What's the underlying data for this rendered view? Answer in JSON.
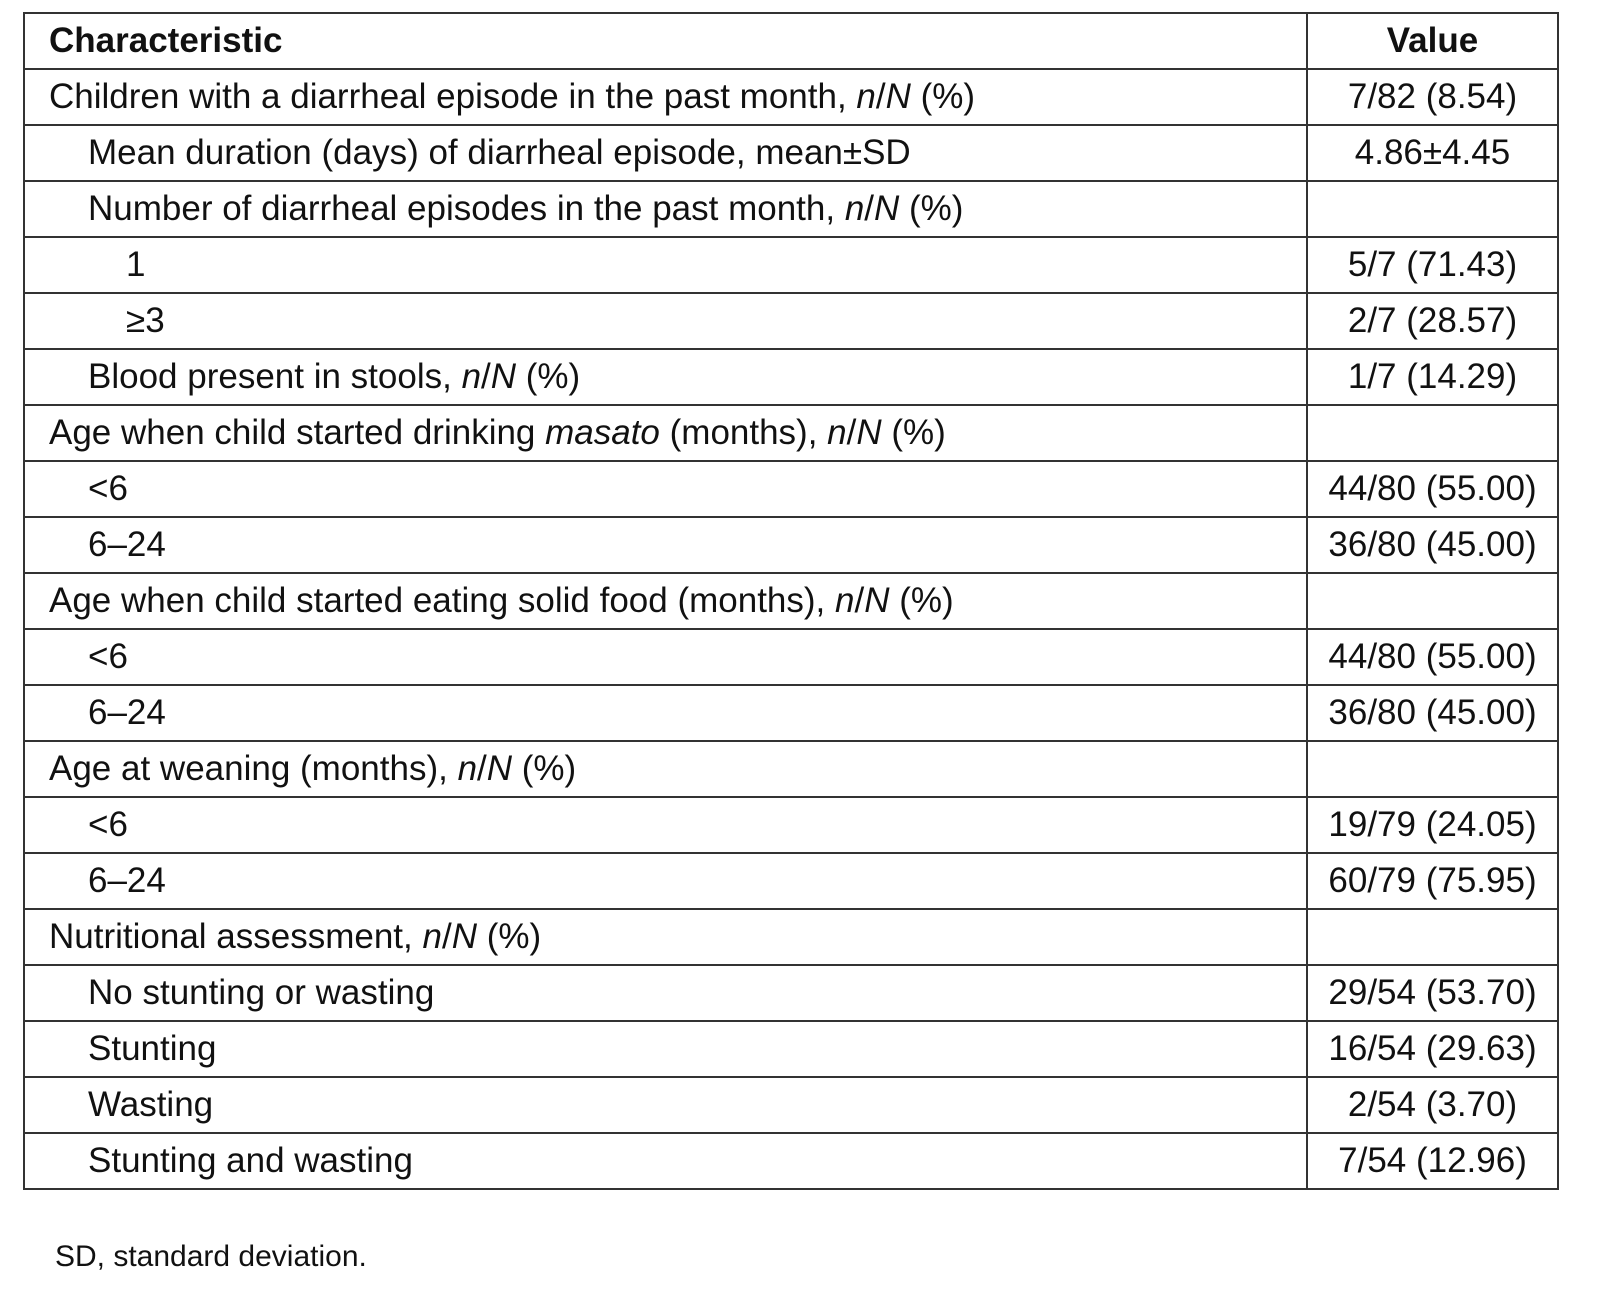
{
  "table": {
    "headers": [
      "Characteristic",
      "Value"
    ],
    "rows": [
      {
        "level": 0,
        "parts": [
          {
            "t": "Children with a diarrheal episode in the past month, "
          },
          {
            "t": "n",
            "i": true
          },
          {
            "t": "/"
          },
          {
            "t": "N",
            "i": true
          },
          {
            "t": " (%)"
          }
        ],
        "value": "7/82 (8.54)"
      },
      {
        "level": 1,
        "parts": [
          {
            "t": "Mean duration (days) of diarrheal episode, mean±SD"
          }
        ],
        "value": "4.86±4.45"
      },
      {
        "level": 1,
        "parts": [
          {
            "t": "Number of diarrheal episodes in the past month, "
          },
          {
            "t": "n",
            "i": true
          },
          {
            "t": "/"
          },
          {
            "t": "N",
            "i": true
          },
          {
            "t": " (%)"
          }
        ],
        "value": ""
      },
      {
        "level": 2,
        "parts": [
          {
            "t": "1"
          }
        ],
        "value": "5/7 (71.43)"
      },
      {
        "level": 2,
        "parts": [
          {
            "t": "≥3"
          }
        ],
        "value": "2/7 (28.57)"
      },
      {
        "level": 1,
        "parts": [
          {
            "t": "Blood present in stools, "
          },
          {
            "t": "n",
            "i": true
          },
          {
            "t": "/"
          },
          {
            "t": "N",
            "i": true
          },
          {
            "t": " (%)"
          }
        ],
        "value": "1/7 (14.29)"
      },
      {
        "level": 0,
        "parts": [
          {
            "t": "Age when child started drinking "
          },
          {
            "t": "masato",
            "i": true
          },
          {
            "t": " (months), "
          },
          {
            "t": "n",
            "i": true
          },
          {
            "t": "/"
          },
          {
            "t": "N",
            "i": true
          },
          {
            "t": " (%)"
          }
        ],
        "value": ""
      },
      {
        "level": 1,
        "parts": [
          {
            "t": "<6"
          }
        ],
        "value": "44/80 (55.00)"
      },
      {
        "level": 1,
        "parts": [
          {
            "t": "6–24"
          }
        ],
        "value": "36/80 (45.00)"
      },
      {
        "level": 0,
        "parts": [
          {
            "t": "Age when child started eating solid food (months), "
          },
          {
            "t": "n",
            "i": true
          },
          {
            "t": "/"
          },
          {
            "t": "N",
            "i": true
          },
          {
            "t": " (%)"
          }
        ],
        "value": ""
      },
      {
        "level": 1,
        "parts": [
          {
            "t": "<6"
          }
        ],
        "value": "44/80 (55.00)"
      },
      {
        "level": 1,
        "parts": [
          {
            "t": "6–24"
          }
        ],
        "value": "36/80 (45.00)"
      },
      {
        "level": 0,
        "parts": [
          {
            "t": "Age at weaning (months), "
          },
          {
            "t": "n",
            "i": true
          },
          {
            "t": "/"
          },
          {
            "t": "N",
            "i": true
          },
          {
            "t": " (%)"
          }
        ],
        "value": ""
      },
      {
        "level": 1,
        "parts": [
          {
            "t": "<6"
          }
        ],
        "value": "19/79 (24.05)"
      },
      {
        "level": 1,
        "parts": [
          {
            "t": "6–24"
          }
        ],
        "value": "60/79 (75.95)"
      },
      {
        "level": 0,
        "parts": [
          {
            "t": "Nutritional assessment, "
          },
          {
            "t": "n",
            "i": true
          },
          {
            "t": "/"
          },
          {
            "t": "N",
            "i": true
          },
          {
            "t": " (%)"
          }
        ],
        "value": ""
      },
      {
        "level": 1,
        "parts": [
          {
            "t": "No stunting or wasting"
          }
        ],
        "value": "29/54 (53.70)"
      },
      {
        "level": 1,
        "parts": [
          {
            "t": "Stunting"
          }
        ],
        "value": "16/54 (29.63)"
      },
      {
        "level": 1,
        "parts": [
          {
            "t": "Wasting"
          }
        ],
        "value": "2/54 (3.70)"
      },
      {
        "level": 1,
        "parts": [
          {
            "t": "Stunting and wasting"
          }
        ],
        "value": "7/54 (12.96)"
      }
    ]
  },
  "footnote": "SD, standard deviation."
}
